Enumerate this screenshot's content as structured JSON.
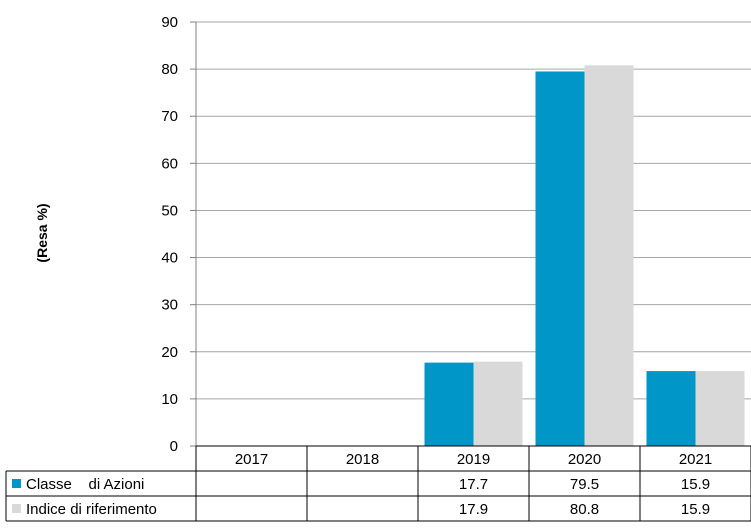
{
  "chart_data": {
    "type": "bar",
    "ylabel": "(Resa %)",
    "ylim": [
      0,
      90
    ],
    "yticks": [
      0,
      10,
      20,
      30,
      40,
      50,
      60,
      70,
      80,
      90
    ],
    "grid": true,
    "categories": [
      "2017",
      "2018",
      "2019",
      "2020",
      "2021"
    ],
    "series": [
      {
        "name": "Classe    di Azioni",
        "color": "#0096C8",
        "values": [
          null,
          null,
          17.7,
          79.5,
          15.9
        ],
        "labels": [
          "",
          "",
          "17.7",
          "79.5",
          "15.9"
        ]
      },
      {
        "name": "Indice di riferimento",
        "color": "#D9D9D9",
        "values": [
          null,
          null,
          17.9,
          80.8,
          15.9
        ],
        "labels": [
          "",
          "",
          "17.9",
          "80.8",
          "15.9"
        ]
      }
    ],
    "data_table": true
  }
}
